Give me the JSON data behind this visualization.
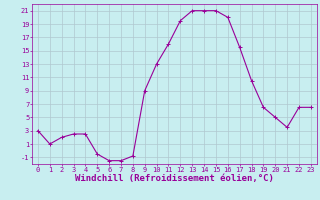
{
  "x": [
    0,
    1,
    2,
    3,
    4,
    5,
    6,
    7,
    8,
    9,
    10,
    11,
    12,
    13,
    14,
    15,
    16,
    17,
    18,
    19,
    20,
    21,
    22,
    23
  ],
  "y": [
    3,
    1,
    2,
    2.5,
    2.5,
    -0.5,
    -1.5,
    -1.5,
    -0.8,
    9,
    13,
    16,
    19.5,
    21,
    21,
    21,
    20,
    15.5,
    10.5,
    6.5,
    5,
    3.5,
    6.5,
    6.5
  ],
  "line_color": "#990099",
  "marker": "+",
  "marker_color": "#990099",
  "bg_color": "#c8eef0",
  "grid_color": "#b0c8d0",
  "xlabel": "Windchill (Refroidissement éolien,°C)",
  "xlabel_color": "#990099",
  "yticks": [
    -1,
    1,
    3,
    5,
    7,
    9,
    11,
    13,
    15,
    17,
    19,
    21
  ],
  "xticks": [
    0,
    1,
    2,
    3,
    4,
    5,
    6,
    7,
    8,
    9,
    10,
    11,
    12,
    13,
    14,
    15,
    16,
    17,
    18,
    19,
    20,
    21,
    22,
    23
  ],
  "ylim": [
    -2,
    22
  ],
  "xlim": [
    -0.5,
    23.5
  ],
  "tick_color": "#990099",
  "tick_fontsize": 5,
  "xlabel_fontsize": 6.5,
  "linewidth": 0.8,
  "markersize": 3,
  "markeredgewidth": 0.7
}
